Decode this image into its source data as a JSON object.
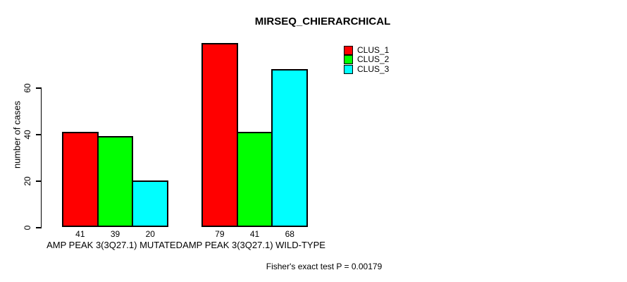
{
  "title": "MIRSEQ_CHIERARCHICAL",
  "footer_note": "Fisher's exact test P = 0.00179",
  "colors": {
    "clus_1": "#ff0000",
    "clus_2": "#00ff00",
    "clus_3": "#00ffff",
    "axis": "#000000",
    "background": "#ffffff"
  },
  "chart_data": {
    "type": "bar",
    "title": "MIRSEQ_CHIERARCHICAL",
    "xlabel": "",
    "ylabel": "number of cases",
    "categories": [
      "AMP PEAK 3(3Q27.1) MUTATED",
      "AMP PEAK 3(3Q27.1) WILD-TYPE"
    ],
    "series": [
      {
        "name": "CLUS_1",
        "color": "#ff0000",
        "values": [
          41,
          79
        ]
      },
      {
        "name": "CLUS_2",
        "color": "#00ff00",
        "values": [
          39,
          41
        ]
      },
      {
        "name": "CLUS_3",
        "color": "#00ffff",
        "values": [
          20,
          68
        ]
      }
    ],
    "bar_value_labels": [
      [
        41,
        39,
        20
      ],
      [
        79,
        41,
        68
      ]
    ],
    "yticks": [
      0,
      20,
      40,
      60
    ],
    "ylim": [
      0,
      82
    ],
    "grid": false,
    "legend_position": "top-right",
    "legend_entries": [
      "CLUS_1",
      "CLUS_2",
      "CLUS_3"
    ],
    "annotation": "Fisher's exact test P = 0.00179"
  }
}
